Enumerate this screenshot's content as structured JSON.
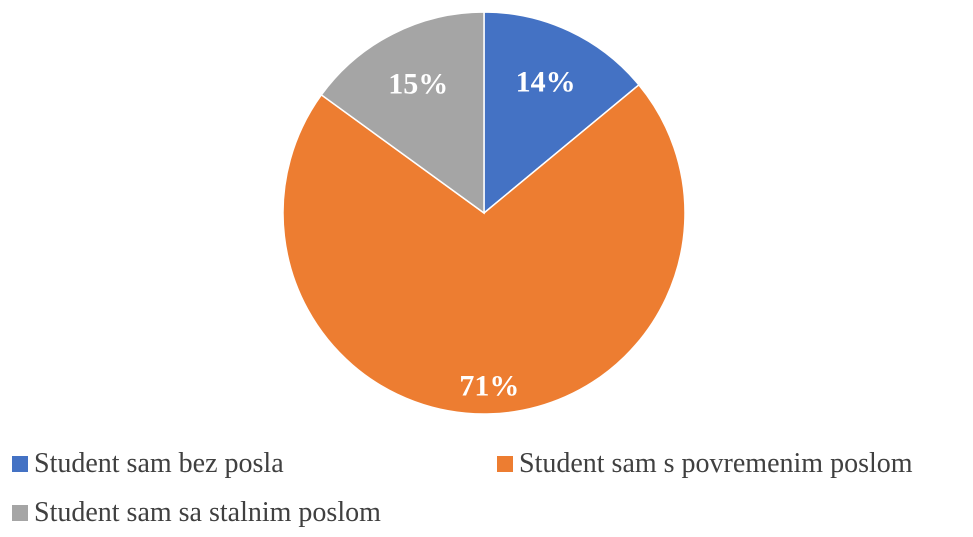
{
  "chart_data": {
    "type": "pie",
    "title": "",
    "slices": [
      {
        "name": "Student sam bez posla",
        "value": 14,
        "label": "14%",
        "color": "#4472C4"
      },
      {
        "name": "Student sam s povremenim poslom",
        "value": 71,
        "label": "71%",
        "color": "#ED7D31"
      },
      {
        "name": "Student sam sa stalnim poslom",
        "value": 15,
        "label": "15%",
        "color": "#A5A5A5"
      }
    ],
    "legend": {
      "position": "bottom",
      "entries": [
        "Student sam bez posla",
        "Student sam s povremenim poslom",
        "Student sam sa stalnim poslom"
      ]
    },
    "start_angle": "top, clockwise"
  }
}
